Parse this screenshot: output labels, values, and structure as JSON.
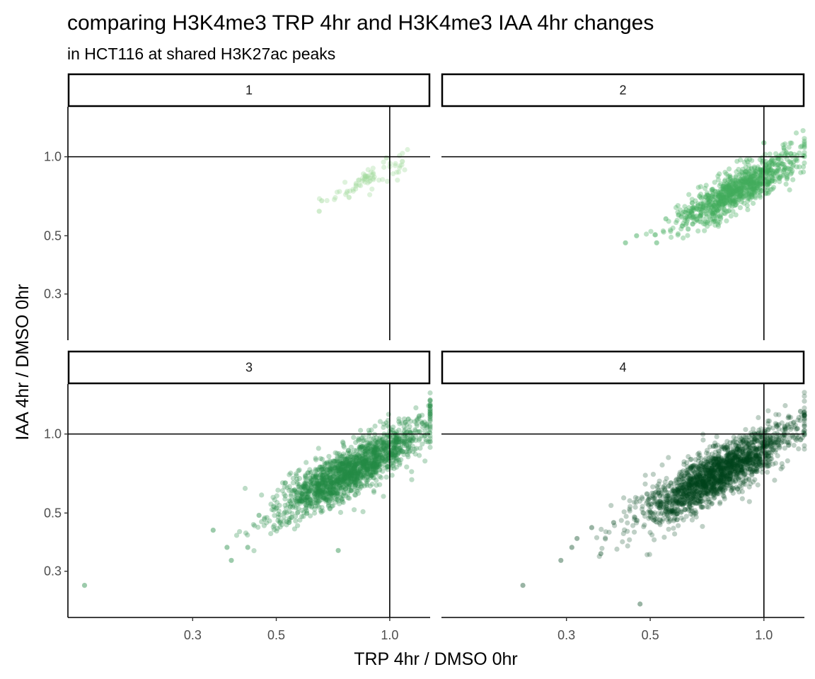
{
  "title": "comparing H3K4me3 TRP 4hr and H3K4me3 IAA 4hr changes",
  "subtitle": "in HCT116 at shared H3K27ac peaks",
  "chart_data": {
    "type": "scatter",
    "title": "comparing H3K4me3 TRP 4hr and H3K4me3 IAA 4hr changes",
    "subtitle": "in HCT116 at shared H3K27ac peaks",
    "xlabel": "TRP 4hr / DMSO 0hr",
    "ylabel": "IAA 4hr / DMSO 0hr",
    "x_scale": "log",
    "y_scale": "log",
    "xlim": [
      0.14,
      1.28
    ],
    "ylim": [
      0.2,
      1.55
    ],
    "x_ticks": [
      0.3,
      0.5,
      1.0
    ],
    "x_tick_labels": [
      "0.3",
      "0.5",
      "1.0"
    ],
    "y_ticks": [
      0.3,
      0.5,
      1.0
    ],
    "y_tick_labels": [
      "0.3",
      "0.5",
      "1.0"
    ],
    "reference_lines": {
      "x": 1.0,
      "y": 1.0
    },
    "grid": false,
    "legend": "none",
    "facets": [
      {
        "label": "1",
        "color": "#a1d99b",
        "opacity": 0.35,
        "n_points": 70,
        "center": [
          0.88,
          0.83
        ],
        "spread": [
          0.12,
          0.1
        ],
        "outliers": [
          [
            0.65,
            0.62
          ],
          [
            0.66,
            0.68
          ],
          [
            1.08,
            0.96
          ],
          [
            0.98,
            0.99
          ],
          [
            0.78,
            0.7
          ]
        ]
      },
      {
        "label": "2",
        "color": "#41ab5d",
        "opacity": 0.35,
        "n_points": 900,
        "center": [
          0.85,
          0.75
        ],
        "spread": [
          0.18,
          0.16
        ],
        "outliers": [
          [
            0.43,
            0.47
          ],
          [
            0.46,
            0.5
          ],
          [
            0.52,
            0.47
          ],
          [
            0.63,
            0.53
          ],
          [
            1.13,
            1.08
          ],
          [
            1.0,
            1.13
          ],
          [
            0.55,
            0.58
          ]
        ]
      },
      {
        "label": "3",
        "color": "#238b45",
        "opacity": 0.3,
        "n_points": 1700,
        "center": [
          0.78,
          0.72
        ],
        "spread": [
          0.22,
          0.2
        ],
        "outliers": [
          [
            0.155,
            0.265
          ],
          [
            0.38,
            0.33
          ],
          [
            0.37,
            0.37
          ],
          [
            0.34,
            0.43
          ],
          [
            0.42,
            0.37
          ],
          [
            0.73,
            0.36
          ],
          [
            0.45,
            0.49
          ],
          [
            1.2,
            1.02
          ],
          [
            1.12,
            1.14
          ]
        ]
      },
      {
        "label": "4",
        "color": "#00441b",
        "opacity": 0.25,
        "n_points": 2000,
        "center": [
          0.75,
          0.7
        ],
        "spread": [
          0.23,
          0.21
        ],
        "outliers": [
          [
            0.23,
            0.265
          ],
          [
            0.29,
            0.33
          ],
          [
            0.31,
            0.37
          ],
          [
            0.47,
            0.225
          ],
          [
            0.32,
            0.4
          ],
          [
            0.35,
            0.44
          ],
          [
            0.37,
            0.35
          ],
          [
            1.25,
            1.22
          ],
          [
            0.4,
            0.46
          ]
        ]
      }
    ]
  }
}
